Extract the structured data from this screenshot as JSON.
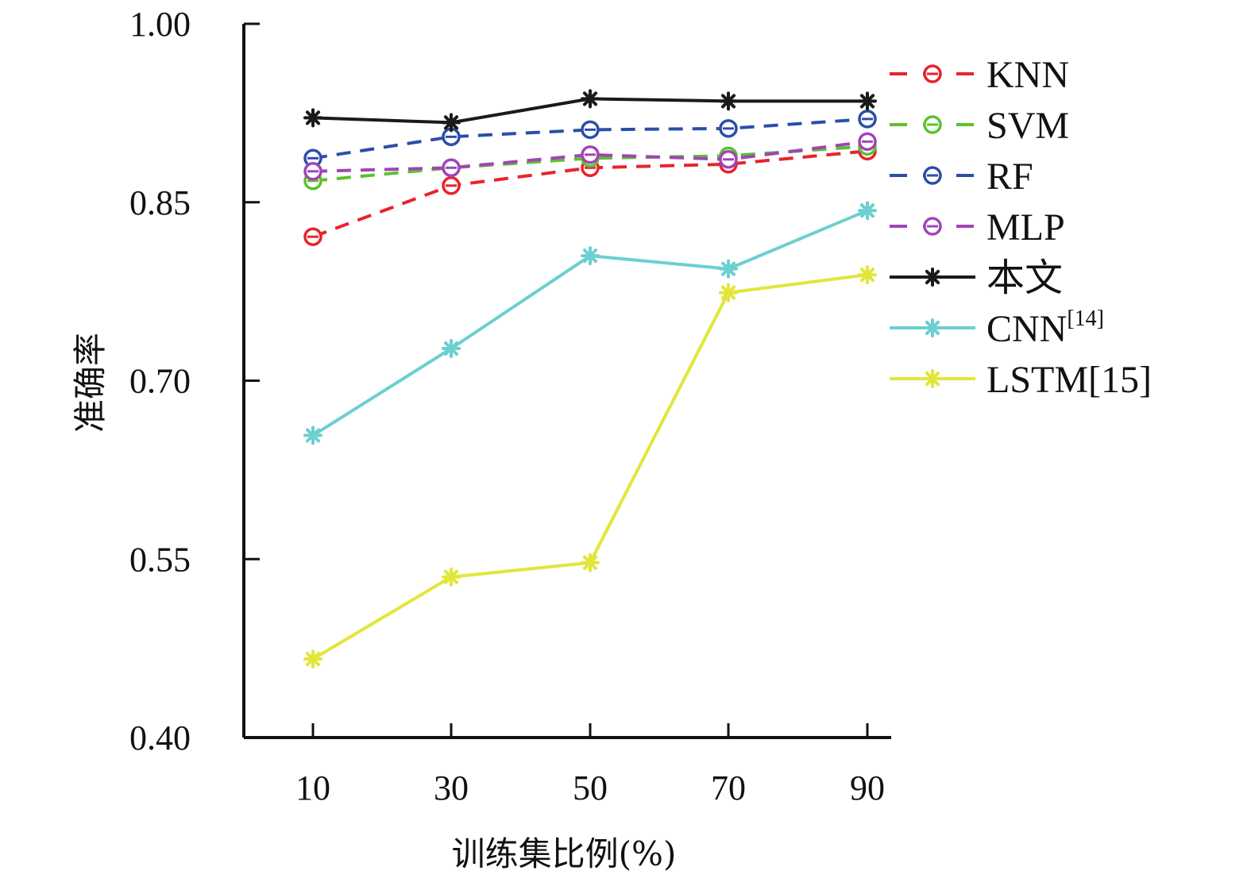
{
  "chart_data": {
    "type": "line",
    "title": "",
    "xlabel": "训练集比例(%)",
    "ylabel": "准确率",
    "x": [
      10,
      30,
      50,
      70,
      90
    ],
    "x_ticks": [
      "10",
      "30",
      "50",
      "70",
      "90"
    ],
    "y_ticks": [
      "0.40",
      "0.55",
      "0.70",
      "0.85",
      "1.00"
    ],
    "ylim": [
      0.4,
      1.0
    ],
    "grid": false,
    "legend_position": "right",
    "series": [
      {
        "name": "KNN",
        "sup": "",
        "color": "#e8232b",
        "dash": true,
        "marker": "circle",
        "values": [
          0.821,
          0.864,
          0.879,
          0.882,
          0.893
        ]
      },
      {
        "name": "SVM",
        "sup": "",
        "color": "#5cc12e",
        "dash": true,
        "marker": "circle",
        "values": [
          0.868,
          0.879,
          0.887,
          0.889,
          0.897
        ]
      },
      {
        "name": "RF",
        "sup": "",
        "color": "#2b4ea8",
        "dash": true,
        "marker": "circle",
        "values": [
          0.887,
          0.905,
          0.911,
          0.912,
          0.92
        ]
      },
      {
        "name": "MLP",
        "sup": "",
        "color": "#a045b5",
        "dash": true,
        "marker": "circle",
        "values": [
          0.876,
          0.879,
          0.89,
          0.886,
          0.901
        ]
      },
      {
        "name": "本文",
        "sup": "",
        "color": "#1a1a1a",
        "dash": false,
        "marker": "star",
        "values": [
          0.921,
          0.917,
          0.937,
          0.935,
          0.935
        ]
      },
      {
        "name": "CNN",
        "sup": "[14]",
        "color": "#6ccfd0",
        "dash": false,
        "marker": "star",
        "values": [
          0.654,
          0.727,
          0.805,
          0.794,
          0.843
        ]
      },
      {
        "name": "LSTM[15]",
        "sup": "",
        "color": "#e2e63a",
        "dash": false,
        "marker": "star",
        "values": [
          0.466,
          0.535,
          0.547,
          0.774,
          0.789
        ]
      }
    ]
  }
}
